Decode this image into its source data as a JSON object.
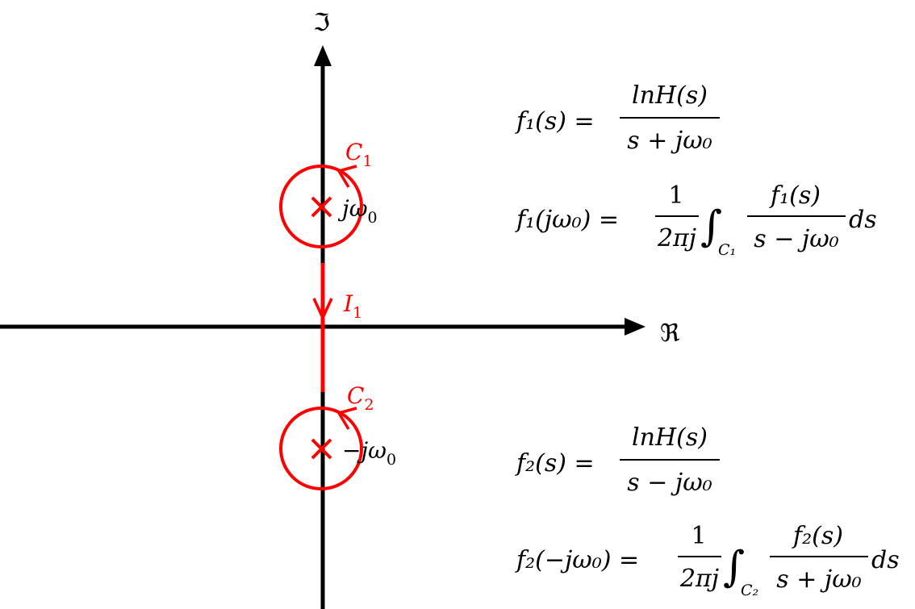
{
  "axes": {
    "imag_label": "ℑ",
    "real_label": "ℜ"
  },
  "poles": {
    "upper": {
      "label_j": "j",
      "label_omega": "ω",
      "label_sub": "0"
    },
    "lower": {
      "label_minus": "−",
      "label_j": "j",
      "label_omega": "ω",
      "label_sub": "0"
    }
  },
  "contours": {
    "c1": {
      "letter": "C",
      "sub": "1"
    },
    "c2": {
      "letter": "C",
      "sub": "2"
    },
    "i1": {
      "letter": "I",
      "sub": "1"
    }
  },
  "equations": {
    "eq1": {
      "lhs": "f₁(s) =",
      "num": "lnH(s)",
      "den": "s + jω₀"
    },
    "eq2": {
      "lhs": "f₁(jω₀) =",
      "coef_num": "1",
      "coef_den": "2πj",
      "int_sign": "∫",
      "int_sub": "C₁",
      "num": "f₁(s)",
      "den": "s − jω₀",
      "tail": "ds"
    },
    "eq3": {
      "lhs": "f₂(s) =",
      "num": "lnH(s)",
      "den": "s − jω₀"
    },
    "eq4": {
      "lhs": "f₂(−jω₀) =",
      "coef_num": "1",
      "coef_den": "2πj",
      "int_sign": "∫",
      "int_sub": "C₂",
      "num": "f₂(s)",
      "den": "s + jω₀",
      "tail": "ds"
    }
  },
  "colors": {
    "axis": "#000000",
    "contour": "#ff0000",
    "text": "#000000"
  }
}
